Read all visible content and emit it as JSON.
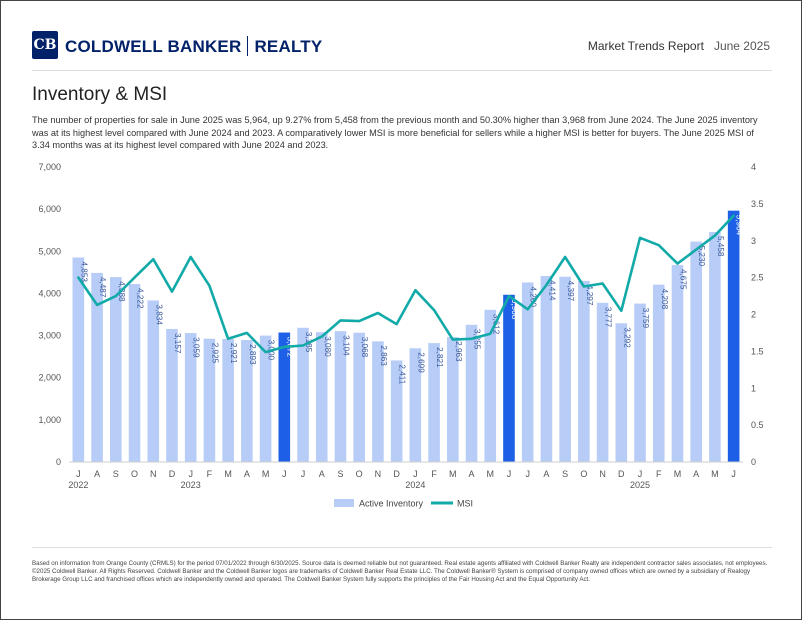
{
  "header": {
    "logo_mark": "CB",
    "brand_name": "COLDWELL BANKER",
    "brand_suffix": "REALTY",
    "report_title": "Market Trends Report",
    "report_date": "June 2025"
  },
  "section": {
    "title": "Inventory & MSI",
    "description": "The number of properties for sale in June 2025 was 5,964, up 9.27% from 5,458 from the previous month and 50.30% higher than 3,968 from June 2024. The June 2025 inventory was at its highest level compared with June 2024 and 2023. A comparatively lower MSI is more beneficial for sellers while a higher MSI is better for buyers. The June 2025 MSI of 3.34 months was at its highest level compared with June 2024 and 2023."
  },
  "chart_data": {
    "type": "bar",
    "categories": [
      "J",
      "A",
      "S",
      "O",
      "N",
      "D",
      "J",
      "F",
      "M",
      "A",
      "M",
      "J",
      "J",
      "A",
      "S",
      "O",
      "N",
      "D",
      "J",
      "F",
      "M",
      "A",
      "M",
      "J",
      "J",
      "A",
      "S",
      "O",
      "N",
      "D",
      "J",
      "F",
      "M",
      "A",
      "M",
      "J"
    ],
    "year_labels": [
      {
        "index": 0,
        "label": "2022"
      },
      {
        "index": 6,
        "label": "2023"
      },
      {
        "index": 18,
        "label": "2024"
      },
      {
        "index": 30,
        "label": "2025"
      }
    ],
    "series": [
      {
        "name": "Active Inventory",
        "type": "bar",
        "axis": "left",
        "values": [
          4853,
          4487,
          4388,
          4222,
          3834,
          3157,
          3059,
          2925,
          2921,
          2893,
          3000,
          3072,
          3185,
          3080,
          3104,
          3068,
          2863,
          2411,
          2699,
          2821,
          2963,
          3255,
          3612,
          3968,
          4260,
          4414,
          4397,
          4297,
          3777,
          3292,
          3759,
          4208,
          4675,
          5230,
          5458,
          5964
        ],
        "labels": [
          "4,853",
          "4,487",
          "4,388",
          "4,222",
          "3,834",
          "3,157",
          "3,059",
          "2,925",
          "2,921",
          "2,893",
          "3,000",
          "3,072",
          "3,185",
          "3,080",
          "3,104",
          "3,068",
          "2,863",
          "2,411",
          "2,699",
          "2,821",
          "2,963",
          "3,255",
          "3,612",
          "3,968",
          "4,260",
          "4,414",
          "4,397",
          "4,297",
          "3,777",
          "3,292",
          "3,759",
          "4,208",
          "4,675",
          "5,230",
          "5,458",
          "5,964"
        ],
        "highlight_indices": [
          11,
          23,
          35
        ]
      },
      {
        "name": "MSI",
        "type": "line",
        "axis": "right",
        "values": [
          2.5,
          2.13,
          2.25,
          2.5,
          2.75,
          2.31,
          2.78,
          2.39,
          1.67,
          1.75,
          1.49,
          1.56,
          1.58,
          1.7,
          1.92,
          1.91,
          2.02,
          1.87,
          2.33,
          2.06,
          1.66,
          1.67,
          1.74,
          2.25,
          2.07,
          2.4,
          2.78,
          2.38,
          2.42,
          2.05,
          3.04,
          2.94,
          2.69,
          2.88,
          3.07,
          3.34
        ]
      }
    ],
    "y_left": {
      "min": 0,
      "max": 7000,
      "ticks": [
        0,
        1000,
        2000,
        3000,
        4000,
        5000,
        6000,
        7000
      ],
      "tick_labels": [
        "0",
        "1,000",
        "2,000",
        "3,000",
        "4,000",
        "5,000",
        "6,000",
        "7,000"
      ]
    },
    "y_right": {
      "min": 0,
      "max": 4,
      "ticks": [
        0,
        0.5,
        1,
        1.5,
        2,
        2.5,
        3,
        3.5,
        4
      ],
      "tick_labels": [
        "0",
        "0.5",
        "1",
        "1.5",
        "2",
        "2.5",
        "3",
        "3.5",
        "4"
      ]
    },
    "legend": [
      "Active Inventory",
      "MSI"
    ],
    "legend_position": "bottom",
    "colors": {
      "bar": "#b7cdf7",
      "bar_highlight": "#1d5fe6",
      "line": "#12aaa8",
      "axis_text": "#555555",
      "bar_label": "#3b5a9a",
      "bar_label_highlight": "#ffffff"
    }
  },
  "footer": {
    "text": "Based on information from Orange County (CRMLS) for the period 07/01/2022 through 6/30/2025. Source data is deemed reliable but not guaranteed. Real estate agents affiliated with Coldwell Banker Realty are independent contractor sales associates, not employees. ©2025 Coldwell Banker. All Rights Reserved. Coldwell Banker and the Coldwell Banker logos are trademarks of Coldwell Banker Real Estate LLC. The Coldwell Banker® System is comprised of company owned offices which are owned by a subsidiary of Realogy Brokerage Group LLC and franchised offices which are independently owned and operated. The Coldwell Banker System fully supports the principles of the Fair Housing Act and the Equal Opportunity Act."
  }
}
